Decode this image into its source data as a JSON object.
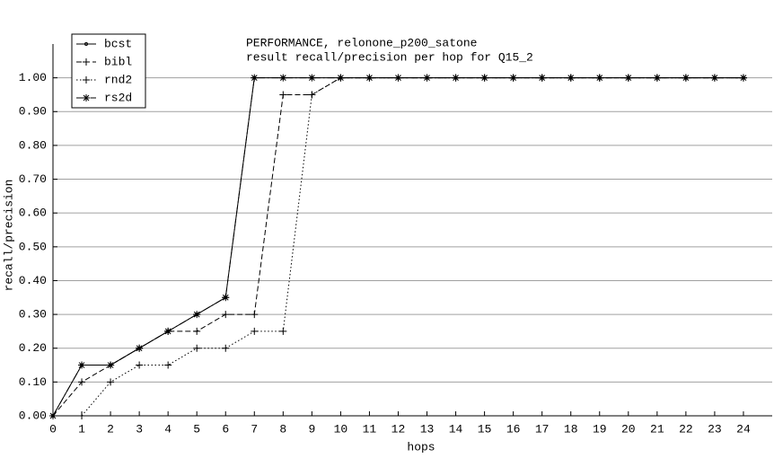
{
  "chart_data": {
    "type": "line",
    "title": "PERFORMANCE, relonone_p200_satone",
    "subtitle": "result recall/precision per hop for Q15_2",
    "x_label": "hops",
    "y_label": "recall/precision",
    "x": [
      0,
      1,
      2,
      3,
      4,
      5,
      6,
      7,
      8,
      9,
      10,
      11,
      12,
      13,
      14,
      15,
      16,
      17,
      18,
      19,
      20,
      21,
      22,
      23,
      24
    ],
    "series": [
      {
        "name": "bcst",
        "color": "#000000",
        "line_style": "solid",
        "marker": "dot",
        "values": [
          0,
          0.15,
          0.15,
          0.2,
          0.25,
          0.3,
          0.35,
          1,
          1,
          1,
          1,
          1,
          1,
          1,
          1,
          1,
          1,
          1,
          1,
          1,
          1,
          1,
          1,
          1,
          1
        ]
      },
      {
        "name": "bibl",
        "color": "#000000",
        "line_style": "dashed",
        "marker": "plus",
        "values": [
          0,
          0.1,
          0.15,
          0.2,
          0.25,
          0.25,
          0.3,
          0.3,
          0.95,
          0.95,
          1,
          1,
          1,
          1,
          1,
          1,
          1,
          1,
          1,
          1,
          1,
          1,
          1,
          1,
          1
        ]
      },
      {
        "name": "rnd2",
        "color": "#000000",
        "line_style": "dotted",
        "marker": "plus",
        "values": [
          0,
          0,
          0.1,
          0.15,
          0.15,
          0.2,
          0.2,
          0.25,
          0.25,
          0.95,
          1,
          1,
          1,
          1,
          1,
          1,
          1,
          1,
          1,
          1,
          1,
          1,
          1,
          1,
          1
        ]
      },
      {
        "name": "rs2d",
        "color": "#000000",
        "line_style": "dashdot",
        "marker": "star",
        "values": [
          0,
          0.15,
          0.15,
          0.2,
          0.25,
          0.3,
          0.35,
          1,
          1,
          1,
          1,
          1,
          1,
          1,
          1,
          1,
          1,
          1,
          1,
          1,
          1,
          1,
          1,
          1,
          1
        ]
      }
    ],
    "xlim": [
      0,
      25
    ],
    "ylim": [
      0,
      1.1
    ],
    "xticks": [
      0,
      1,
      2,
      3,
      4,
      5,
      6,
      7,
      8,
      9,
      10,
      11,
      12,
      13,
      14,
      15,
      16,
      17,
      18,
      19,
      20,
      21,
      22,
      23,
      24
    ],
    "yticks": [
      {
        "value": 0,
        "label": "0.00"
      },
      {
        "value": 0.1,
        "label": "0.10"
      },
      {
        "value": 0.2,
        "label": "0.20"
      },
      {
        "value": 0.3,
        "label": "0.30"
      },
      {
        "value": 0.4,
        "label": "0.40"
      },
      {
        "value": 0.5,
        "label": "0.50"
      },
      {
        "value": 0.6,
        "label": "0.60"
      },
      {
        "value": 0.7,
        "label": "0.70"
      },
      {
        "value": 0.8,
        "label": "0.80"
      },
      {
        "value": 0.9,
        "label": "0.90"
      },
      {
        "value": 1,
        "label": "1.00"
      }
    ],
    "grid": true,
    "legend": "top-left"
  }
}
